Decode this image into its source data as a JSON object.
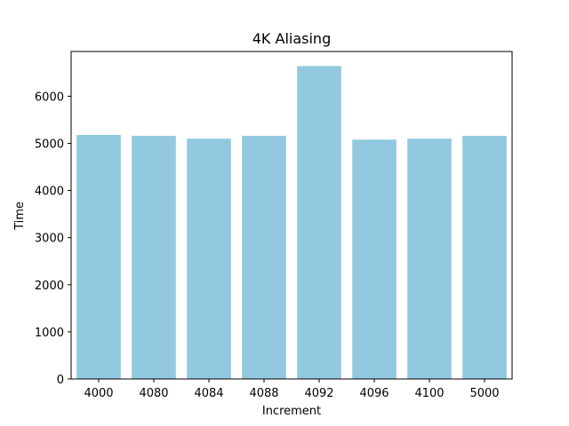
{
  "chart_data": {
    "type": "bar",
    "title": "4K Aliasing",
    "xlabel": "Increment",
    "ylabel": "Time",
    "categories": [
      "4000",
      "4080",
      "4084",
      "4088",
      "4092",
      "4096",
      "4100",
      "5000"
    ],
    "values": [
      5180,
      5160,
      5100,
      5160,
      6640,
      5080,
      5100,
      5160
    ],
    "ylim": [
      0,
      6950
    ],
    "yticks": [
      0,
      1000,
      2000,
      3000,
      4000,
      5000,
      6000
    ],
    "bar_color": "#92c9e0",
    "grid": false
  }
}
